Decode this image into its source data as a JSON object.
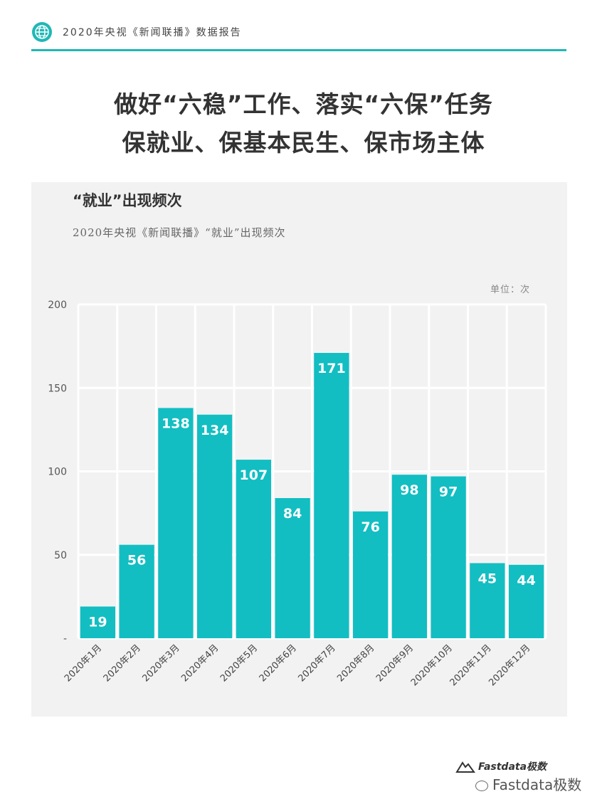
{
  "header": {
    "text": "2020年央视《新闻联播》数据报告",
    "icon": "globe-icon",
    "accent_color": "#1fb8b6"
  },
  "title": {
    "line1": "做好“六稳”工作、落实“六保”任务",
    "line2": "保就业、保基本民生、保市场主体"
  },
  "chart_data": {
    "type": "bar",
    "title": "“就业”出现频次",
    "subtitle": "2020年央视《新闻联播》“就业”出现频次",
    "unit": "单位：次",
    "categories": [
      "2020年1月",
      "2020年2月",
      "2020年3月",
      "2020年4月",
      "2020年5月",
      "2020年6月",
      "2020年7月",
      "2020年8月",
      "2020年9月",
      "2020年10月",
      "2020年11月",
      "2020年12月"
    ],
    "values": [
      19,
      56,
      138,
      134,
      107,
      84,
      171,
      76,
      98,
      97,
      45,
      44
    ],
    "ylim": [
      0,
      200
    ],
    "yticks": [
      0,
      50,
      100,
      150,
      200
    ],
    "ytick_labels": [
      "-",
      "50",
      "100",
      "150",
      "200"
    ],
    "bar_color": "#12bec2",
    "grid": true,
    "data_labels": true
  },
  "footer": {
    "logo_text": "Fastdata极数",
    "watermark": "Fastdata极数"
  }
}
